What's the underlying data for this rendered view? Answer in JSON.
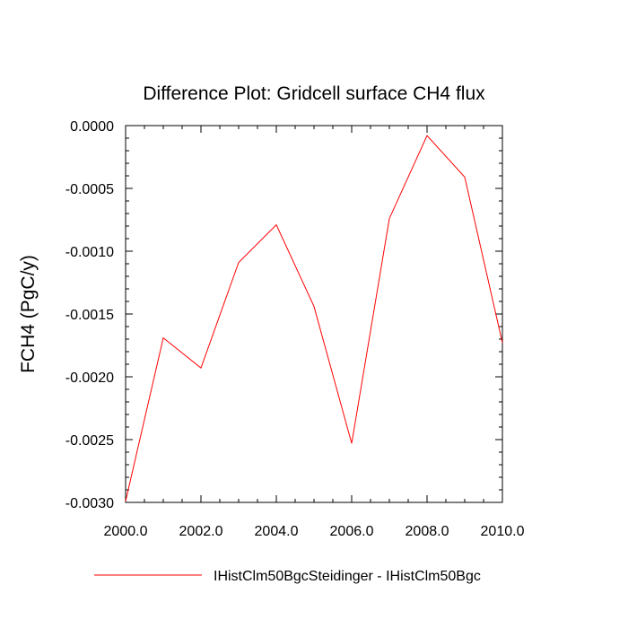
{
  "chart_data": {
    "type": "line",
    "title": "Difference Plot: Gridcell surface CH4 flux",
    "xlabel": "",
    "ylabel": "FCH4  (PgC/y)",
    "xlim": [
      2000.0,
      2010.0
    ],
    "ylim": [
      -0.003,
      0.0
    ],
    "x_ticks": [
      "2000.0",
      "2002.0",
      "2004.0",
      "2006.0",
      "2008.0",
      "2010.0"
    ],
    "y_ticks": [
      "0.0000",
      "-0.0005",
      "-0.0010",
      "-0.0015",
      "-0.0020",
      "-0.0025",
      "-0.0030"
    ],
    "grid": false,
    "legend_position": "bottom",
    "series": [
      {
        "name": "IHistClm50BgcSteidinger - IHistClm50Bgc",
        "color": "#ff0000",
        "x": [
          2000,
          2001,
          2002,
          2003,
          2004,
          2005,
          2006,
          2007,
          2008,
          2009,
          2010
        ],
        "values": [
          -0.00299,
          -0.00169,
          -0.00193,
          -0.00109,
          -0.00079,
          -0.00144,
          -0.00253,
          -0.00074,
          -8e-05,
          -0.00041,
          -0.00173
        ]
      }
    ]
  }
}
